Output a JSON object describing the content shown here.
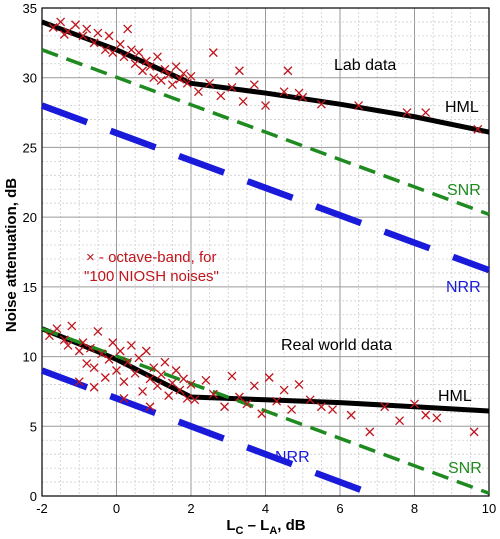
{
  "chart_data": {
    "type": "line",
    "title": "",
    "xlabel": "L",
    "xlabel_sub1": "C",
    "xlabel_mid": " – L",
    "xlabel_sub2": "A",
    "xlabel_unit": ", dB",
    "ylabel": "Noise attenuation, dB",
    "xlim": [
      -2,
      10
    ],
    "ylim": [
      0,
      35
    ],
    "x_ticks": [
      -2,
      0,
      2,
      4,
      6,
      8,
      10
    ],
    "y_ticks": [
      0,
      5,
      10,
      15,
      20,
      25,
      30,
      35
    ],
    "grid": true,
    "colors": {
      "hml": "#000000",
      "snr": "#1f8a1f",
      "nrr": "#1a1adb",
      "points": "#c0141c"
    },
    "panel_labels": {
      "lab": "Lab data",
      "real": "Real world data"
    },
    "legend_text": {
      "line1": "× - octave-band, for",
      "line2": "\"100 NIOSH noises\""
    },
    "series": [
      {
        "name": "HML",
        "group": "lab",
        "style": "solid",
        "x": [
          -2,
          0,
          2,
          4,
          6,
          8,
          10
        ],
        "y": [
          34,
          32,
          29.6,
          28.9,
          28.1,
          27.2,
          26.1
        ]
      },
      {
        "name": "SNR",
        "group": "lab",
        "style": "dashed",
        "x": [
          -2,
          10
        ],
        "y": [
          32,
          20.2
        ]
      },
      {
        "name": "NRR",
        "group": "lab",
        "style": "dashed-thick",
        "x": [
          -2,
          10
        ],
        "y": [
          28,
          16.2
        ]
      },
      {
        "name": "HML",
        "group": "real",
        "style": "solid",
        "x": [
          -2,
          0,
          2,
          4,
          6,
          8,
          10
        ],
        "y": [
          12,
          9.8,
          7.1,
          6.9,
          6.7,
          6.4,
          6.1
        ]
      },
      {
        "name": "SNR",
        "group": "real",
        "style": "dashed",
        "x": [
          -2,
          10
        ],
        "y": [
          12,
          0.2
        ]
      },
      {
        "name": "NRR",
        "group": "real",
        "style": "dashed-thick",
        "x": [
          -2,
          7
        ],
        "y": [
          9,
          0
        ]
      }
    ],
    "points_lab": [
      [
        -1.7,
        33.6
      ],
      [
        -1.5,
        34.0
      ],
      [
        -1.3,
        33.3
      ],
      [
        -1.1,
        33.8
      ],
      [
        -0.9,
        33.0
      ],
      [
        -0.8,
        33.5
      ],
      [
        -0.6,
        32.5
      ],
      [
        -0.5,
        33.2
      ],
      [
        -0.3,
        32.0
      ],
      [
        -0.2,
        33.0
      ],
      [
        -0.1,
        31.8
      ],
      [
        0.1,
        32.4
      ],
      [
        0.2,
        31.5
      ],
      [
        0.4,
        32.0
      ],
      [
        0.5,
        31.0
      ],
      [
        0.6,
        31.8
      ],
      [
        0.7,
        30.5
      ],
      [
        0.8,
        31.2
      ],
      [
        0.9,
        30.8
      ],
      [
        1.0,
        30.0
      ],
      [
        1.1,
        31.5
      ],
      [
        1.2,
        29.8
      ],
      [
        1.3,
        30.6
      ],
      [
        1.4,
        30.2
      ],
      [
        1.5,
        29.5
      ],
      [
        1.6,
        30.8
      ],
      [
        1.7,
        29.9
      ],
      [
        1.8,
        30.3
      ],
      [
        1.9,
        29.6
      ],
      [
        2.0,
        30.1
      ],
      [
        0.3,
        33.5
      ],
      [
        -1.4,
        33.1
      ],
      [
        2.2,
        29.0
      ],
      [
        2.5,
        29.6
      ],
      [
        2.8,
        28.7
      ],
      [
        3.1,
        29.3
      ],
      [
        3.4,
        28.3
      ],
      [
        3.7,
        29.5
      ],
      [
        4.0,
        28.0
      ],
      [
        4.5,
        29.0
      ],
      [
        5.0,
        28.6
      ],
      [
        5.5,
        28.1
      ],
      [
        4.6,
        30.5
      ],
      [
        2.6,
        31.8
      ],
      [
        3.3,
        30.5
      ],
      [
        4.9,
        28.9
      ],
      [
        6.5,
        28.0
      ],
      [
        7.8,
        27.5
      ],
      [
        8.3,
        27.5
      ],
      [
        9.7,
        26.3
      ]
    ],
    "points_real": [
      [
        -1.8,
        11.5
      ],
      [
        -1.6,
        12.0
      ],
      [
        -1.4,
        11.2
      ],
      [
        -1.3,
        10.8
      ],
      [
        -1.2,
        12.2
      ],
      [
        -1.0,
        10.4
      ],
      [
        -0.9,
        11.0
      ],
      [
        -0.8,
        9.5
      ],
      [
        -0.7,
        10.6
      ],
      [
        -0.6,
        9.2
      ],
      [
        -0.5,
        11.8
      ],
      [
        -0.4,
        10.2
      ],
      [
        -0.3,
        8.5
      ],
      [
        -0.2,
        9.8
      ],
      [
        -0.1,
        11.0
      ],
      [
        0.0,
        9.0
      ],
      [
        0.1,
        10.4
      ],
      [
        0.2,
        8.2
      ],
      [
        0.3,
        9.6
      ],
      [
        0.4,
        10.8
      ],
      [
        0.5,
        8.8
      ],
      [
        0.6,
        9.9
      ],
      [
        0.7,
        7.5
      ],
      [
        0.8,
        10.4
      ],
      [
        0.9,
        8.4
      ],
      [
        1.0,
        9.2
      ],
      [
        1.1,
        7.9
      ],
      [
        1.2,
        8.7
      ],
      [
        1.3,
        9.6
      ],
      [
        1.4,
        7.2
      ],
      [
        1.5,
        8.1
      ],
      [
        1.6,
        9.0
      ],
      [
        1.7,
        7.6
      ],
      [
        1.8,
        8.4
      ],
      [
        1.9,
        7.0
      ],
      [
        2.0,
        8.0
      ],
      [
        -1.0,
        8.2
      ],
      [
        -0.6,
        7.8
      ],
      [
        0.2,
        7.0
      ],
      [
        0.9,
        6.4
      ],
      [
        2.1,
        6.9
      ],
      [
        2.4,
        8.3
      ],
      [
        2.6,
        7.3
      ],
      [
        2.9,
        6.4
      ],
      [
        3.1,
        8.6
      ],
      [
        3.3,
        7.1
      ],
      [
        3.5,
        6.6
      ],
      [
        3.7,
        7.9
      ],
      [
        3.9,
        5.9
      ],
      [
        4.1,
        8.5
      ],
      [
        4.3,
        6.8
      ],
      [
        4.5,
        7.6
      ],
      [
        4.7,
        6.2
      ],
      [
        4.9,
        8.0
      ],
      [
        5.2,
        6.9
      ],
      [
        5.5,
        6.4
      ],
      [
        5.8,
        6.2
      ],
      [
        6.3,
        5.8
      ],
      [
        6.8,
        4.6
      ],
      [
        7.2,
        6.4
      ],
      [
        7.6,
        5.4
      ],
      [
        8.0,
        6.6
      ],
      [
        8.3,
        5.8
      ],
      [
        8.6,
        5.6
      ],
      [
        9.6,
        4.6
      ]
    ],
    "line_labels": {
      "hml": "HML",
      "snr": "SNR",
      "nrr": "NRR"
    }
  }
}
